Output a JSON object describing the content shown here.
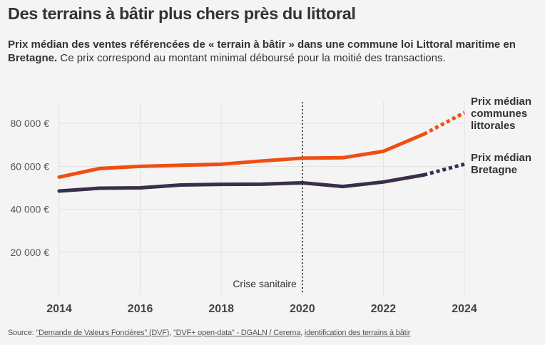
{
  "title": "Des terrains à bâtir plus chers près du littoral",
  "subtitle": {
    "bold": "Prix médian des ventes référencées de « terrain à bâtir » dans une commune loi Littoral maritime en Bretagne.",
    "normal": " Ce prix correspond au montant minimal déboursé pour la moitié des transactions."
  },
  "source": {
    "prefix": "Source: ",
    "link1": "\"Demande de Valeurs Foncières\" (DVF)",
    "sep1": ", ",
    "link2": "\"DVF+ open-data\" - DGALN / Cerema",
    "sep2": ", ",
    "link3": "identification des terrains à bâtir"
  },
  "colors": {
    "littoral": "#f04e12",
    "bretagne": "#3b2e4a",
    "grid": "#e2e2e2",
    "annotation": "#222222"
  },
  "chart_data": {
    "type": "line",
    "x": [
      2014,
      2015,
      2016,
      2017,
      2018,
      2019,
      2020,
      2021,
      2022,
      2023,
      2024
    ],
    "xlim": [
      2014,
      2024
    ],
    "ylim": [
      0,
      90000
    ],
    "xticks": [
      2014,
      2016,
      2018,
      2020,
      2022,
      2024
    ],
    "yticks": [
      20000,
      40000,
      60000,
      80000
    ],
    "ytick_labels": [
      "20 000 €",
      "40 000 €",
      "60 000 €",
      "80 000 €"
    ],
    "grid": true,
    "series": [
      {
        "name": "Prix médian communes littorales",
        "label_lines": [
          "Prix médian",
          "communes",
          "littorales"
        ],
        "color_key": "littoral",
        "values": [
          55000,
          59000,
          60000,
          60500,
          61000,
          62500,
          63800,
          64000,
          67000,
          75000,
          85000
        ],
        "dashed_from": 2023
      },
      {
        "name": "Prix médian Bretagne",
        "label_lines": [
          "Prix médian",
          "Bretagne"
        ],
        "color_key": "bretagne",
        "values": [
          48500,
          49800,
          50000,
          51300,
          51600,
          51700,
          52300,
          50600,
          52700,
          56000,
          61000
        ],
        "dashed_from": 2023
      }
    ],
    "annotations": [
      {
        "x": 2020,
        "label": "Crise sanitaire",
        "style": "dotted-vertical"
      }
    ]
  }
}
